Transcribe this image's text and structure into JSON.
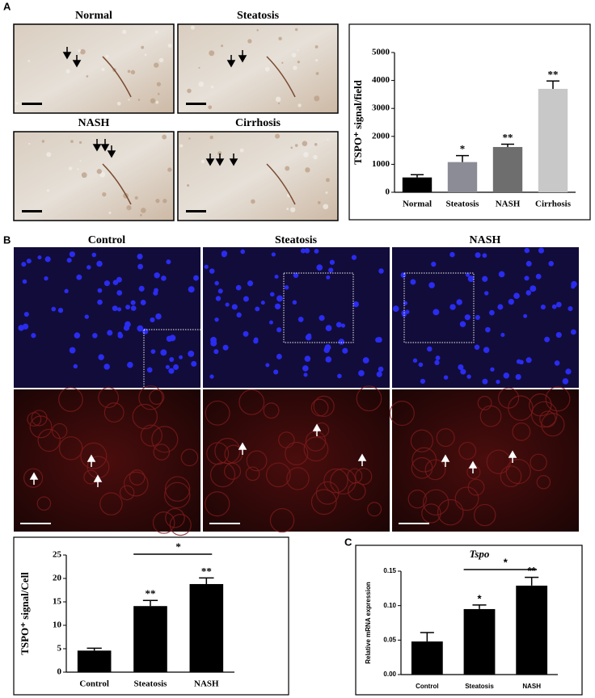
{
  "panel_labels": [
    "A",
    "B",
    "C"
  ],
  "micrographs_a": [
    "Normal",
    "Steatosis",
    "NASH",
    "Cirrhosis"
  ],
  "micrographs_b": [
    "Control",
    "Steatosis",
    "NASH"
  ],
  "chart_data": [
    {
      "type": "bar",
      "y_label": "TSPO⁺ signal/field",
      "categories": [
        "Normal",
        "Steatosis",
        "NASH",
        "Cirrhosis"
      ],
      "values": [
        530,
        1080,
        1620,
        3700
      ],
      "errors": [
        100,
        230,
        100,
        280
      ],
      "colors": [
        "#000000",
        "#8c8c96",
        "#6e6e6e",
        "#c8c8c8"
      ],
      "significance": [
        null,
        "*",
        "**",
        "**"
      ],
      "ylim": [
        0,
        5000
      ],
      "yticks": [
        0,
        1000,
        2000,
        3000,
        4000,
        5000
      ]
    },
    {
      "type": "bar",
      "y_label": "TSPO⁺ signal/Cell",
      "categories": [
        "Control",
        "Steatosis",
        "NASH"
      ],
      "values": [
        4.6,
        14.1,
        18.8
      ],
      "errors": [
        0.5,
        1.2,
        1.3
      ],
      "color": "#000000",
      "significance": [
        null,
        "**",
        "**"
      ],
      "comparison": {
        "between": [
          "Steatosis",
          "NASH"
        ],
        "label": "*"
      },
      "ylim": [
        0,
        25
      ],
      "yticks": [
        0,
        5,
        10,
        15,
        20,
        25
      ]
    },
    {
      "type": "bar",
      "title": "Tspo",
      "y_label": "Relative mRNA expression",
      "categories": [
        "Control",
        "Steatosis",
        "NASH"
      ],
      "values": [
        0.048,
        0.095,
        0.129
      ],
      "errors": [
        0.013,
        0.006,
        0.012
      ],
      "color": "#000000",
      "significance": [
        null,
        "*",
        "**"
      ],
      "comparison": {
        "between": [
          "Steatosis",
          "NASH"
        ],
        "label": "*"
      },
      "ylim": [
        0,
        0.15
      ],
      "yticks": [
        {
          "value": 0,
          "label": "0.00"
        },
        0.05,
        {
          "value": 0.1,
          "label": "0.10"
        },
        0.15
      ]
    }
  ]
}
